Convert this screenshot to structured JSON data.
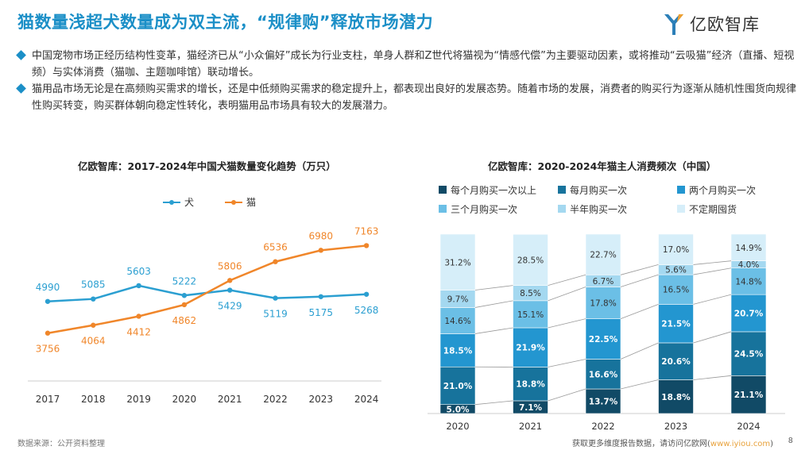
{
  "header": {
    "title": "猫数量浅超犬数量成为双主流，“规律购”释放市场潜力",
    "logo_text": "亿欧智库"
  },
  "bullets": [
    "中国宠物市场正经历结构性变革，猫经济已从“小众偏好”成长为行业支柱，单身人群和Z世代将猫视为“情感代偿”为主要驱动因素，或将推动“云吸猫”经济（直播、短视频）与实体消费（猫咖、主题咖啡馆）联动增长。",
    "猫用品市场无论是在高频购买需求的增长，还是中低频购买需求的稳定提升上，都表现出良好的发展态势。随着市场的发展，消费者的购买行为逐渐从随机性囤货向规律性购买转变，购买群体朝向稳定性转化，表明猫用品市场具有较大的发展潜力。"
  ],
  "chart_data": [
    {
      "type": "line",
      "title": "亿欧智库：2017-2024年中国犬猫数量变化趋势（万只）",
      "x": [
        "2017",
        "2018",
        "2019",
        "2020",
        "2021",
        "2022",
        "2023",
        "2024"
      ],
      "series": [
        {
          "name": "犬",
          "color": "#2b9fd1",
          "values": [
            4990,
            5085,
            5603,
            5222,
            5429,
            5119,
            5175,
            5268
          ]
        },
        {
          "name": "猫",
          "color": "#f0862a",
          "values": [
            3756,
            4064,
            4412,
            4862,
            5806,
            6536,
            6980,
            7163
          ]
        }
      ],
      "ylim": [
        3500,
        7300
      ],
      "grid": false,
      "legend": "top-center"
    },
    {
      "type": "bar",
      "stacked": true,
      "title": "亿欧智库：2020-2024年猫主人消费频次（中国）",
      "categories": [
        "2020",
        "2021",
        "2022",
        "2023",
        "2024"
      ],
      "series": [
        {
          "name": "每个月购买一次以上",
          "color": "#114a66",
          "values": [
            5.0,
            7.1,
            13.7,
            18.8,
            21.1
          ]
        },
        {
          "name": "每月购买一次",
          "color": "#17739c",
          "values": [
            21.0,
            18.8,
            16.6,
            20.6,
            24.5
          ]
        },
        {
          "name": "两个月购买一次",
          "color": "#2396d0",
          "values": [
            18.5,
            21.9,
            22.5,
            21.5,
            20.7
          ]
        },
        {
          "name": "三个月购买一次",
          "color": "#6bbfe6",
          "values": [
            14.6,
            15.1,
            17.8,
            16.5,
            14.8
          ]
        },
        {
          "name": "半年购买一次",
          "color": "#a4d8f0",
          "values": [
            9.7,
            8.5,
            6.7,
            5.6,
            4.0
          ]
        },
        {
          "name": "不定期囤货",
          "color": "#d6eef9",
          "values": [
            31.2,
            28.5,
            22.7,
            17.0,
            14.9
          ]
        }
      ],
      "unit": "%",
      "ylim": [
        0,
        100
      ],
      "legend": "top"
    }
  ],
  "footer": {
    "source": "数据来源：公开资料整理",
    "more_text": "获取更多维度报告数据，请访问亿欧网",
    "link_text": "www.iyiou.com",
    "paren_open": "(",
    "paren_close": ")",
    "page": "8"
  }
}
